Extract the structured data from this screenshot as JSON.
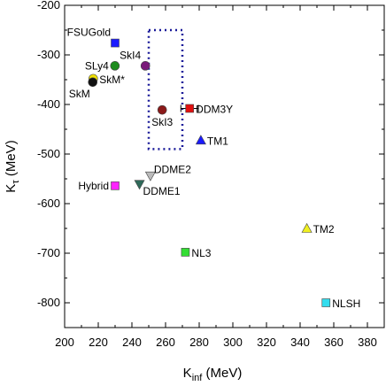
{
  "chart_data": {
    "type": "scatter",
    "xlabel": "K",
    "xlabel_sub": "inf",
    "xlabel_unit": " (MeV)",
    "ylabel": "K",
    "ylabel_sub": "τ",
    "ylabel_unit": " (MeV)",
    "xlim": [
      200,
      390
    ],
    "ylim": [
      -850,
      -200
    ],
    "xticks": [
      200,
      220,
      240,
      260,
      280,
      300,
      320,
      340,
      360,
      380
    ],
    "yticks": [
      -200,
      -300,
      -400,
      -500,
      -600,
      -700,
      -800
    ],
    "grid": false,
    "legend": "none",
    "points": [
      {
        "label": "FSUGold",
        "x": 230,
        "y": -276,
        "marker": "square",
        "color": "#1a1aff",
        "label_pos": "upper-left"
      },
      {
        "label": "SLy4",
        "x": 229.9,
        "y": -322,
        "marker": "circle",
        "color": "#1e8c1e",
        "label_pos": "left"
      },
      {
        "label": "SkI4",
        "x": 248,
        "y": -322,
        "marker": "circle",
        "color": "#7a1a7a",
        "label_pos": "upper-left"
      },
      {
        "label": "SkM*",
        "x": 217,
        "y": -348,
        "marker": "circle",
        "color": "#f0e000",
        "label_pos": "right"
      },
      {
        "label": "SkM",
        "x": 216.7,
        "y": -355,
        "marker": "circle",
        "color": "#111111",
        "label_pos": "lower-left"
      },
      {
        "label": "SkI3",
        "x": 258,
        "y": -411,
        "marker": "circle",
        "color": "#8b1a1a",
        "label_pos": "below"
      },
      {
        "label": "DDM3Y",
        "x": 274.3,
        "y": -408,
        "marker": "square",
        "color": "#e01010",
        "label_pos": "right",
        "xerr": 5.2
      },
      {
        "label": "TM1",
        "x": 281,
        "y": -472,
        "marker": "triangle-up",
        "color": "#1a1aff",
        "label_pos": "right"
      },
      {
        "label": "DDME2",
        "x": 251,
        "y": -544,
        "marker": "triangle-down",
        "color": "#bbbbbb",
        "label_pos": "upper-right"
      },
      {
        "label": "DDME1",
        "x": 244.5,
        "y": -561,
        "marker": "triangle-down",
        "color": "#2f6a5a",
        "label_pos": "lower-right"
      },
      {
        "label": "Hybrid",
        "x": 230,
        "y": -564,
        "marker": "square",
        "color": "#ff22ff",
        "label_pos": "left"
      },
      {
        "label": "TM2",
        "x": 344,
        "y": -650,
        "marker": "triangle-up",
        "color": "#f0f020",
        "label_pos": "right"
      },
      {
        "label": "NL3",
        "x": 271.8,
        "y": -698,
        "marker": "square",
        "color": "#33dd33",
        "label_pos": "right"
      },
      {
        "label": "NLSH",
        "x": 355.4,
        "y": -800,
        "marker": "square",
        "color": "#33ddee",
        "label_pos": "right"
      }
    ],
    "constraint_box": {
      "x": [
        250,
        270
      ],
      "y": [
        -250,
        -490
      ],
      "color": "#1a1a99",
      "style": "dotted"
    }
  }
}
